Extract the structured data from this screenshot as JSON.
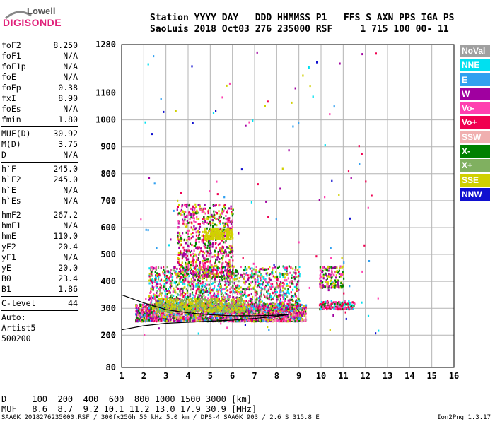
{
  "logo": {
    "top": "Lowell",
    "bottom": "DIGISONDE"
  },
  "header": {
    "row1": "Station YYYY DAY   DDD HHMMSS P1   FFS S AXN PPS IGA PS",
    "row2": "SaoLuis 2018 Oct03 276 235000 RSF     1 715 100 00- 11"
  },
  "params": [
    {
      "label": "foF2",
      "value": "8.250"
    },
    {
      "label": "foF1",
      "value": "N/A"
    },
    {
      "label": "foF1p",
      "value": "N/A"
    },
    {
      "label": "foE",
      "value": "N/A"
    },
    {
      "label": "foEp",
      "value": "0.38"
    },
    {
      "label": "fxI",
      "value": "8.90"
    },
    {
      "label": "foEs",
      "value": "N/A"
    },
    {
      "label": "fmin",
      "value": "1.80"
    },
    {
      "sep": true
    },
    {
      "label": "MUF(D)",
      "value": "30.92"
    },
    {
      "label": "M(D)",
      "value": "3.75"
    },
    {
      "label": "D",
      "value": "N/A"
    },
    {
      "sep": true
    },
    {
      "label": "h`F",
      "value": "245.0"
    },
    {
      "label": "h`F2",
      "value": "245.0"
    },
    {
      "label": "h`E",
      "value": "N/A"
    },
    {
      "label": "h`Es",
      "value": "N/A"
    },
    {
      "sep": true
    },
    {
      "label": "hmF2",
      "value": "267.2"
    },
    {
      "label": "hmF1",
      "value": "N/A"
    },
    {
      "label": "hmE",
      "value": "110.0"
    },
    {
      "label": "yF2",
      "value": "20.4"
    },
    {
      "label": "yF1",
      "value": "N/A"
    },
    {
      "label": "yE",
      "value": "20.0"
    },
    {
      "label": "B0",
      "value": "23.4"
    },
    {
      "label": "B1",
      "value": "1.86"
    },
    {
      "sep": true
    },
    {
      "label": "C-level",
      "value": "44"
    },
    {
      "sep": true
    },
    {
      "text": "Auto:"
    },
    {
      "text": "Artist5"
    },
    {
      "text": "500200"
    }
  ],
  "legend": [
    {
      "label": "NoVal",
      "color": "#a0a0a0"
    },
    {
      "label": "NNE",
      "color": "#00e0f0"
    },
    {
      "label": "E",
      "color": "#30a0f0"
    },
    {
      "label": "W",
      "color": "#a000a0"
    },
    {
      "label": "Vo-",
      "color": "#ff40b0"
    },
    {
      "label": "Vo+",
      "color": "#f00050"
    },
    {
      "label": "SSW",
      "color": "#f0b0b0"
    },
    {
      "label": "X-",
      "color": "#008000"
    },
    {
      "label": "X+",
      "color": "#80b060"
    },
    {
      "label": "SSE",
      "color": "#d0d000"
    },
    {
      "label": "NNW",
      "color": "#1010d0"
    }
  ],
  "dtable": {
    "row1": "D     100  200  400  600  800 1000 1500 3000 [km]",
    "row2": "MUF   8.6  8.7  9.2 10.1 11.2 13.0 17.9 30.9 [MHz]"
  },
  "footer": "SAA0K_2018276235000.RSF / 300fx256h 50 kHz 5.0 km / DPS-4 SAA0K 903 / 2.6 S 315.8 E",
  "version": "Ion2Png 1.3.17",
  "chart_data": {
    "type": "scatter",
    "title": "",
    "xlabel": "",
    "ylabel": "",
    "xlim": [
      1,
      16
    ],
    "ylim": [
      80,
      1280
    ],
    "x_ticks": [
      1,
      2,
      3,
      4,
      5,
      6,
      7,
      8,
      9,
      10,
      11,
      12,
      13,
      14,
      15,
      16
    ],
    "y_ticks": [
      80,
      200,
      300,
      400,
      500,
      600,
      700,
      800,
      900,
      1000,
      1100,
      1280
    ],
    "grid": true,
    "legend_position": "right",
    "clusters": [
      {
        "name": "F2 trace main",
        "freq": [
          1.6,
          9.3
        ],
        "height": [
          255,
          320
        ],
        "n": 2400,
        "colors": [
          "#f00050",
          "#ff40b0",
          "#a000a0",
          "#008000",
          "#d0d000",
          "#30a0f0",
          "#f0b0b0"
        ]
      },
      {
        "name": "F2 spread",
        "freq": [
          2.2,
          9.0
        ],
        "height": [
          300,
          460
        ],
        "n": 1500,
        "colors": [
          "#f00050",
          "#ff40b0",
          "#a000a0",
          "#d0d000",
          "#008000",
          "#00e0f0",
          "#80b060"
        ]
      },
      {
        "name": "spread F high",
        "freq": [
          3.5,
          6.0
        ],
        "height": [
          420,
          690
        ],
        "n": 800,
        "colors": [
          "#d0d000",
          "#f00050",
          "#a000a0",
          "#ff40b0",
          "#008000"
        ]
      },
      {
        "name": "echo 580 km",
        "freq": [
          4.7,
          6.0
        ],
        "height": [
          560,
          600
        ],
        "n": 220,
        "colors": [
          "#d0d000"
        ]
      },
      {
        "name": "echo 300 km yellow",
        "freq": [
          2.5,
          6.5
        ],
        "height": [
          290,
          340
        ],
        "n": 500,
        "colors": [
          "#d0d000",
          "#80b060"
        ]
      },
      {
        "name": "echo 10-11 MHz",
        "freq": [
          9.9,
          11.0
        ],
        "height": [
          380,
          460
        ],
        "n": 160,
        "colors": [
          "#d0d000",
          "#ff40b0",
          "#a000a0",
          "#008000"
        ]
      },
      {
        "name": "echo 10-11.5 MHz low",
        "freq": [
          9.9,
          11.5
        ],
        "height": [
          300,
          330
        ],
        "n": 170,
        "colors": [
          "#f00050",
          "#ff40b0",
          "#008000",
          "#00e0f0"
        ]
      },
      {
        "name": "scattered noise",
        "freq": [
          1.8,
          12.8
        ],
        "height": [
          200,
          1270
        ],
        "n": 150,
        "colors": [
          "#ff40b0",
          "#f00050",
          "#a000a0",
          "#30a0f0",
          "#00e0f0",
          "#d0d000",
          "#1010d0"
        ]
      }
    ],
    "curves": [
      {
        "name": "profile lower",
        "freq": [
          1.0,
          2.0,
          3.0,
          4.0,
          5.0,
          6.0,
          7.0,
          8.0,
          8.5
        ],
        "height": [
          220,
          235,
          244,
          248,
          252,
          256,
          262,
          270,
          276
        ]
      },
      {
        "name": "profile upper",
        "freq": [
          1.0,
          2.0,
          3.0,
          4.0,
          5.0,
          6.0,
          7.0,
          8.0,
          8.6
        ],
        "height": [
          350,
          320,
          295,
          283,
          276,
          272,
          272,
          274,
          278
        ]
      }
    ]
  }
}
